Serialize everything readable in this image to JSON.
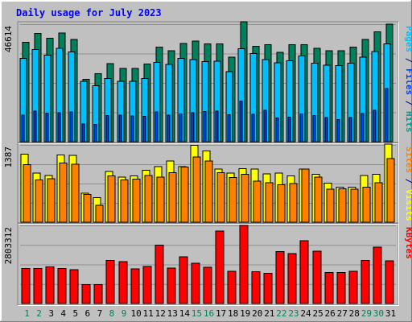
{
  "chart_data": {
    "type": "bar",
    "title": "Daily usage for July 2023",
    "categories": [
      "1",
      "2",
      "3",
      "4",
      "5",
      "6",
      "7",
      "8",
      "9",
      "10",
      "11",
      "12",
      "13",
      "14",
      "15",
      "16",
      "17",
      "18",
      "19",
      "20",
      "21",
      "22",
      "23",
      "24",
      "25",
      "26",
      "27",
      "28",
      "29",
      "30",
      "31"
    ],
    "weekend_days": [
      "1",
      "2",
      "8",
      "9",
      "15",
      "16",
      "22",
      "23",
      "29",
      "30"
    ],
    "panels": [
      {
        "id": "top",
        "scale_label": "46614",
        "ymax": 46614,
        "right_label": [
          {
            "text": "Pages",
            "color": "#00c0ff"
          },
          {
            "text": " / ",
            "color": "#000080"
          },
          {
            "text": "Files",
            "color": "#0040ff"
          },
          {
            "text": " / ",
            "color": "#000080"
          },
          {
            "text": "Hits",
            "color": "#009e8c"
          }
        ],
        "series": [
          {
            "name": "Hits",
            "color": "#00805c",
            "values": [
              39400,
              42900,
              41100,
              43100,
              40600,
              24800,
              27000,
              31000,
              29100,
              29100,
              30800,
              37500,
              36100,
              38900,
              39900,
              38800,
              38800,
              33600,
              47500,
              37900,
              38400,
              35500,
              38400,
              38400,
              37100,
              36000,
              36000,
              37500,
              40600,
              43600,
              46600
            ]
          },
          {
            "name": "Files",
            "color": "#00bfff",
            "values": [
              33000,
              36600,
              34300,
              37100,
              35600,
              23900,
              22200,
              25000,
              23900,
              23900,
              25000,
              31500,
              30700,
              33000,
              32600,
              31700,
              32000,
              27800,
              36900,
              34900,
              32500,
              31300,
              32100,
              34000,
              31200,
              30300,
              30100,
              31200,
              33600,
              35800,
              38800
            ]
          },
          {
            "name": "Pages",
            "color": "#0040ff",
            "values": [
              10600,
              12100,
              11300,
              11500,
              11800,
              7100,
              6800,
              10400,
              10600,
              10200,
              10000,
              11800,
              10600,
              11000,
              11500,
              11900,
              12200,
              10700,
              16100,
              10800,
              12500,
              9400,
              9700,
              11000,
              10400,
              9600,
              8800,
              9600,
              11200,
              12500,
              21000
            ]
          }
        ]
      },
      {
        "id": "mid",
        "scale_label": "1387",
        "ymax": 1387,
        "right_label": [
          {
            "text": "Sites",
            "color": "#ff8000"
          },
          {
            "text": " / ",
            "color": "#000080"
          },
          {
            "text": "Visits",
            "color": "#ffff00"
          }
        ],
        "series": [
          {
            "name": "Visits",
            "color": "#ffff00",
            "values": [
              1220,
              880,
              840,
              1210,
              1200,
              520,
              440,
              910,
              810,
              830,
              930,
              1000,
              1100,
              1000,
              1380,
              1280,
              950,
              880,
              960,
              950,
              870,
              880,
              830,
              950,
              860,
              700,
              630,
              630,
              840,
              860,
              1400
            ]
          },
          {
            "name": "Sites",
            "color": "#ff8000",
            "values": [
              1030,
              760,
              780,
              1060,
              1040,
              500,
              300,
              830,
              760,
              770,
              840,
              810,
              890,
              990,
              1170,
              1100,
              890,
              800,
              860,
              740,
              710,
              670,
              690,
              950,
              810,
              590,
              600,
              590,
              630,
              710,
              1140
            ]
          }
        ]
      },
      {
        "id": "bot",
        "scale_label": "2803312",
        "ymax": 2803312,
        "right_label": [
          {
            "text": "KBytes",
            "color": "#ff0000"
          }
        ],
        "series": [
          {
            "name": "KBytes",
            "color": "#ff0000",
            "values": [
              1250000,
              1260000,
              1310000,
              1250000,
              1210000,
              680000,
              680000,
              1550000,
              1500000,
              1240000,
              1330000,
              2090000,
              1270000,
              1680000,
              1440000,
              1300000,
              2600000,
              1160000,
              2810000,
              1140000,
              1090000,
              1860000,
              1790000,
              2260000,
              1880000,
              1110000,
              1110000,
              1160000,
              1540000,
              2030000,
              1530000
            ]
          }
        ]
      }
    ]
  }
}
